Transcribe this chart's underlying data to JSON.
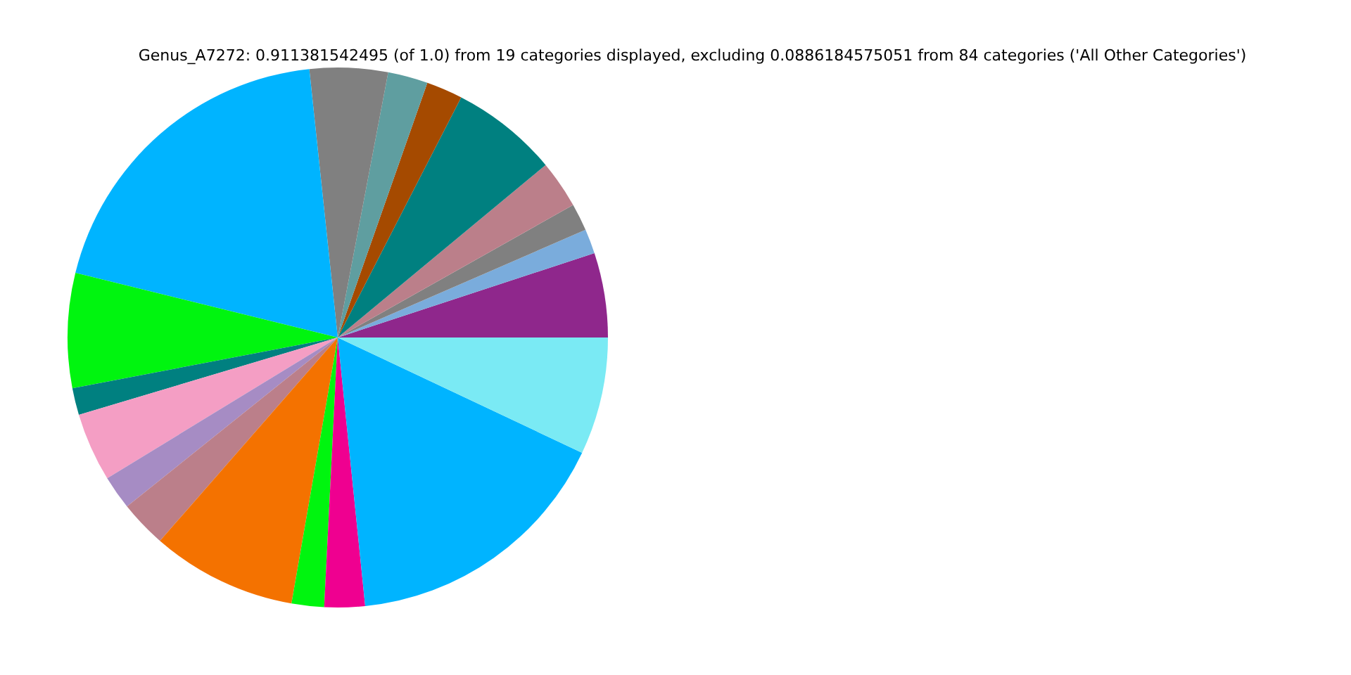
{
  "chart_data": {
    "type": "pie",
    "title": "Genus_A7272: 0.911381542495 (of 1.0) from 19 categories displayed, excluding 0.0886184575051 from 84 categories ('All Other Categories')",
    "categories": [
      null,
      null,
      null,
      null,
      null,
      null,
      null,
      null,
      null,
      null,
      null,
      null,
      null,
      null,
      null,
      null,
      null,
      null,
      null
    ],
    "values": [
      5.06,
      1.47,
      1.64,
      2.86,
      6.42,
      2.17,
      2.39,
      4.67,
      19.47,
      6.86,
      1.61,
      4.11,
      2.03,
      2.81,
      8.69,
      1.94,
      2.42,
      16.36,
      7.02
    ],
    "colors": [
      "#8f278c",
      "#7aacdc",
      "#808080",
      "#bb7f8a",
      "#008080",
      "#a54a00",
      "#5f9ea0",
      "#808080",
      "#00b4ff",
      "#00f50f",
      "#008080",
      "#f49ec4",
      "#a68cc4",
      "#bb7f8a",
      "#f47200",
      "#00f50f",
      "#ef0090",
      "#00b4ff",
      "#7aeaf4"
    ]
  }
}
